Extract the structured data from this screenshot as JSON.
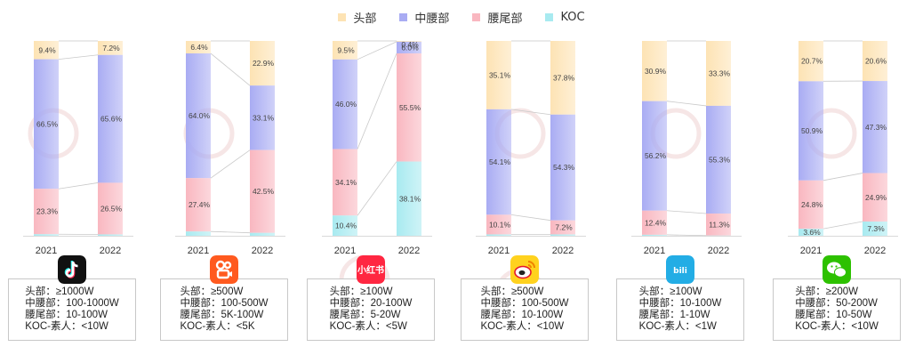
{
  "legend": [
    {
      "label": "头部",
      "color": "#fde3b4"
    },
    {
      "label": "中腰部",
      "color": "#a9acf3"
    },
    {
      "label": "腰尾部",
      "color": "#f9b7c0"
    },
    {
      "label": "KOC",
      "color": "#a8eaf0"
    }
  ],
  "chart_data": {
    "type": "bar",
    "stacked": true,
    "normalized": true,
    "categories": [
      "2021",
      "2022"
    ],
    "series_order": [
      "头部",
      "中腰部",
      "腰尾部",
      "KOC"
    ],
    "colors": {
      "头部": "#fde3b4",
      "中腰部": "#a9acf3",
      "腰尾部": "#f9b7c0",
      "KOC": "#a8eaf0"
    },
    "platforms": [
      {
        "icon": "douyin-icon",
        "years": [
          {
            "year": "2021",
            "values": [
              9.4,
              66.5,
              23.3,
              0.8
            ],
            "labels": [
              "9.4%",
              "66.5%",
              "23.3%",
              ""
            ]
          },
          {
            "year": "2022",
            "values": [
              7.2,
              65.6,
              26.5,
              0.7
            ],
            "labels": [
              "7.2%",
              "65.6%",
              "26.5%",
              ""
            ]
          }
        ],
        "tiers": [
          "头部：≥1000W",
          "中腰部：100-1000W",
          "腰尾部：10-100W",
          "KOC-素人：<10W"
        ]
      },
      {
        "icon": "kuaishou-icon",
        "years": [
          {
            "year": "2021",
            "values": [
              6.4,
              64.0,
              27.4,
              2.2
            ],
            "labels": [
              "6.4%",
              "64.0%",
              "27.4%",
              ""
            ]
          },
          {
            "year": "2022",
            "values": [
              22.9,
              33.1,
              42.5,
              1.5
            ],
            "labels": [
              "22.9%",
              "33.1%",
              "42.5%",
              ""
            ]
          }
        ],
        "tiers": [
          "头部：≥500W",
          "中腰部：100-500W",
          "腰尾部：5K-100W",
          "KOC-素人：<5K"
        ]
      },
      {
        "icon": "xiaohongshu-icon",
        "years": [
          {
            "year": "2021",
            "values": [
              9.5,
              46.0,
              34.1,
              10.4
            ],
            "labels": [
              "9.5%",
              "46.0%",
              "34.1%",
              "10.4%"
            ]
          },
          {
            "year": "2022",
            "values": [
              0.4,
              6.0,
              55.5,
              38.1
            ],
            "labels": [
              "0.4%",
              "6.0%",
              "55.5%",
              "38.1%"
            ]
          }
        ],
        "tiers": [
          "头部：≥100W",
          "中腰部：20-100W",
          "腰尾部：5-20W",
          "KOC-素人：<5W"
        ]
      },
      {
        "icon": "weibo-icon",
        "years": [
          {
            "year": "2021",
            "values": [
              35.1,
              54.1,
              10.1,
              0.7
            ],
            "labels": [
              "35.1%",
              "54.1%",
              "10.1%",
              ""
            ]
          },
          {
            "year": "2022",
            "values": [
              37.8,
              54.3,
              7.2,
              0.7
            ],
            "labels": [
              "37.8%",
              "54.3%",
              "7.2%",
              ""
            ]
          }
        ],
        "tiers": [
          "头部：≥500W",
          "中腰部：100-500W",
          "腰尾部：10-100W",
          "KOC-素人：<10W"
        ]
      },
      {
        "icon": "bilibili-icon",
        "years": [
          {
            "year": "2021",
            "values": [
              30.9,
              56.2,
              12.4,
              0.5
            ],
            "labels": [
              "30.9%",
              "56.2%",
              "12.4%",
              ""
            ]
          },
          {
            "year": "2022",
            "values": [
              33.3,
              55.3,
              11.3,
              0.1
            ],
            "labels": [
              "33.3%",
              "55.3%",
              "11.3%",
              ""
            ]
          }
        ],
        "tiers": [
          "头部：≥100W",
          "中腰部：10-100W",
          "腰尾部：1-10W",
          "KOC-素人：<1W"
        ]
      },
      {
        "icon": "wechat-icon",
        "years": [
          {
            "year": "2021",
            "values": [
              20.7,
              50.9,
              24.8,
              3.6
            ],
            "labels": [
              "20.7%",
              "50.9%",
              "24.8%",
              "3.6%"
            ]
          },
          {
            "year": "2022",
            "values": [
              20.6,
              47.3,
              24.9,
              7.3
            ],
            "labels": [
              "20.6%",
              "47.3%",
              "24.9%",
              "7.3%"
            ]
          }
        ],
        "tiers": [
          "头部：≥200W",
          "中腰部：50-200W",
          "腰尾部：10-50W",
          "KOC-素人：<10W"
        ]
      }
    ]
  }
}
